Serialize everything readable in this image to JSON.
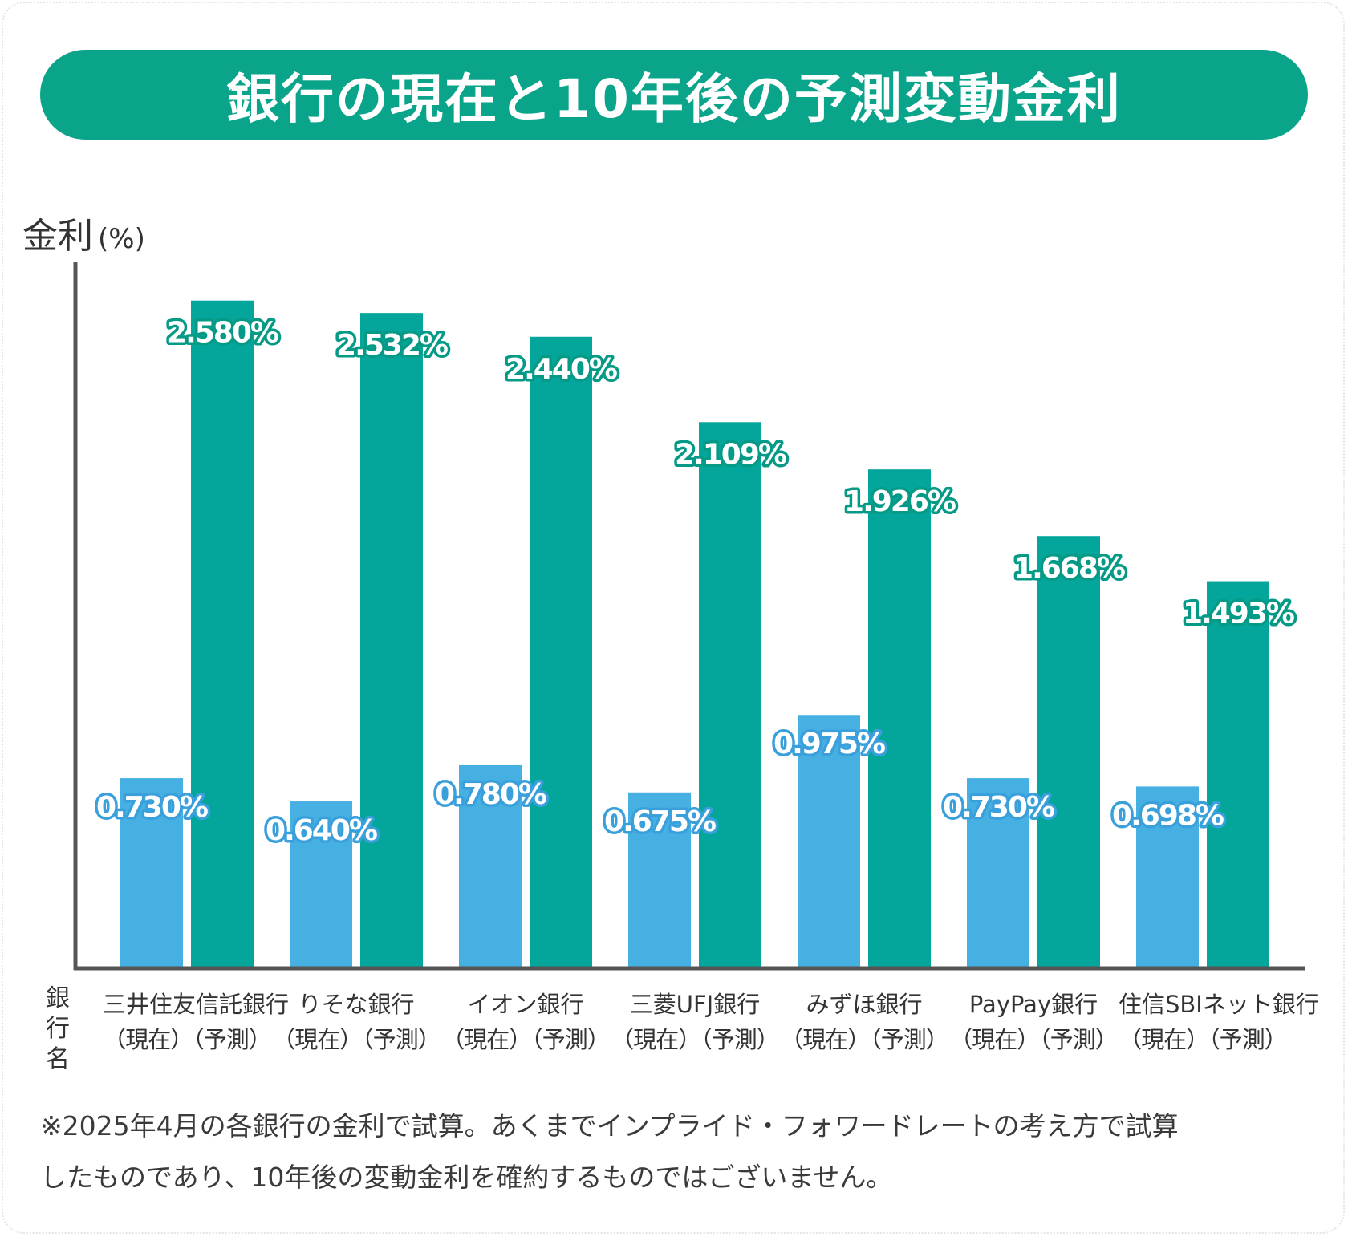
{
  "title": "銀行の現在と10年後の予測変動金利",
  "colors": {
    "title_bg": "#0aa48a",
    "current": "#47b0e2",
    "forecast": "#04a59b",
    "label_stroke_forecast": "#049a86",
    "label_stroke_current": "#3aa0db"
  },
  "chart_data": {
    "type": "bar",
    "ylabel": "金利",
    "yunit": "(%)",
    "xlabel": "銀行名",
    "ylim": [
      0,
      2.75
    ],
    "categories": [
      "三井住友信託銀行",
      "りそな銀行",
      "イオン銀行",
      "三菱UFJ銀行",
      "みずほ銀行",
      "PayPay銀行",
      "住信SBIネット銀行"
    ],
    "sub_label": "（現在）（予測）",
    "series": [
      {
        "key": "current",
        "values": [
          0.73,
          0.64,
          0.78,
          0.675,
          0.975,
          0.73,
          0.698
        ],
        "labels": [
          "0.730%",
          "0.640%",
          "0.780%",
          "0.675%",
          "0.975%",
          "0.730%",
          "0.698%"
        ]
      },
      {
        "key": "forecast",
        "values": [
          2.58,
          2.532,
          2.44,
          2.109,
          1.926,
          1.668,
          1.493
        ],
        "labels": [
          "2.580%",
          "2.532%",
          "2.440%",
          "2.109%",
          "1.926%",
          "1.668%",
          "1.493%"
        ]
      }
    ],
    "grid": false,
    "legend": "none"
  },
  "footnote": {
    "line1": "※2025年4月の各銀行の金利で試算。あくまでインプライド・フォワードレートの考え方で試算",
    "line2": "したものであり、10年後の変動金利を確約するものではございません。"
  }
}
